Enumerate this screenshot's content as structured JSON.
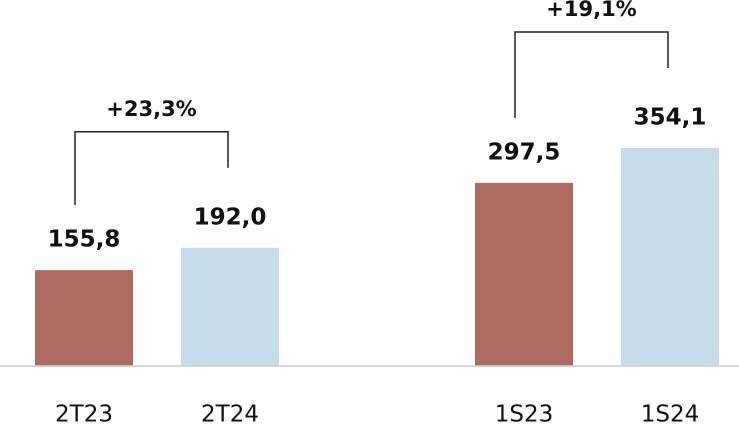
{
  "chart_data": {
    "type": "bar",
    "categories": [
      "2T23",
      "2T24",
      "1S23",
      "1S24"
    ],
    "values": [
      155.8,
      192.0,
      297.5,
      354.1
    ],
    "value_labels": [
      "155,8",
      "192,0",
      "297,5",
      "354,1"
    ],
    "colors": [
      "#b06c60",
      "#c5dcea",
      "#b06c60",
      "#c5dcea"
    ],
    "annotations": [
      {
        "text": "+23,3%",
        "from": 0,
        "to": 1
      },
      {
        "text": "+19,1%",
        "from": 2,
        "to": 3
      }
    ]
  }
}
